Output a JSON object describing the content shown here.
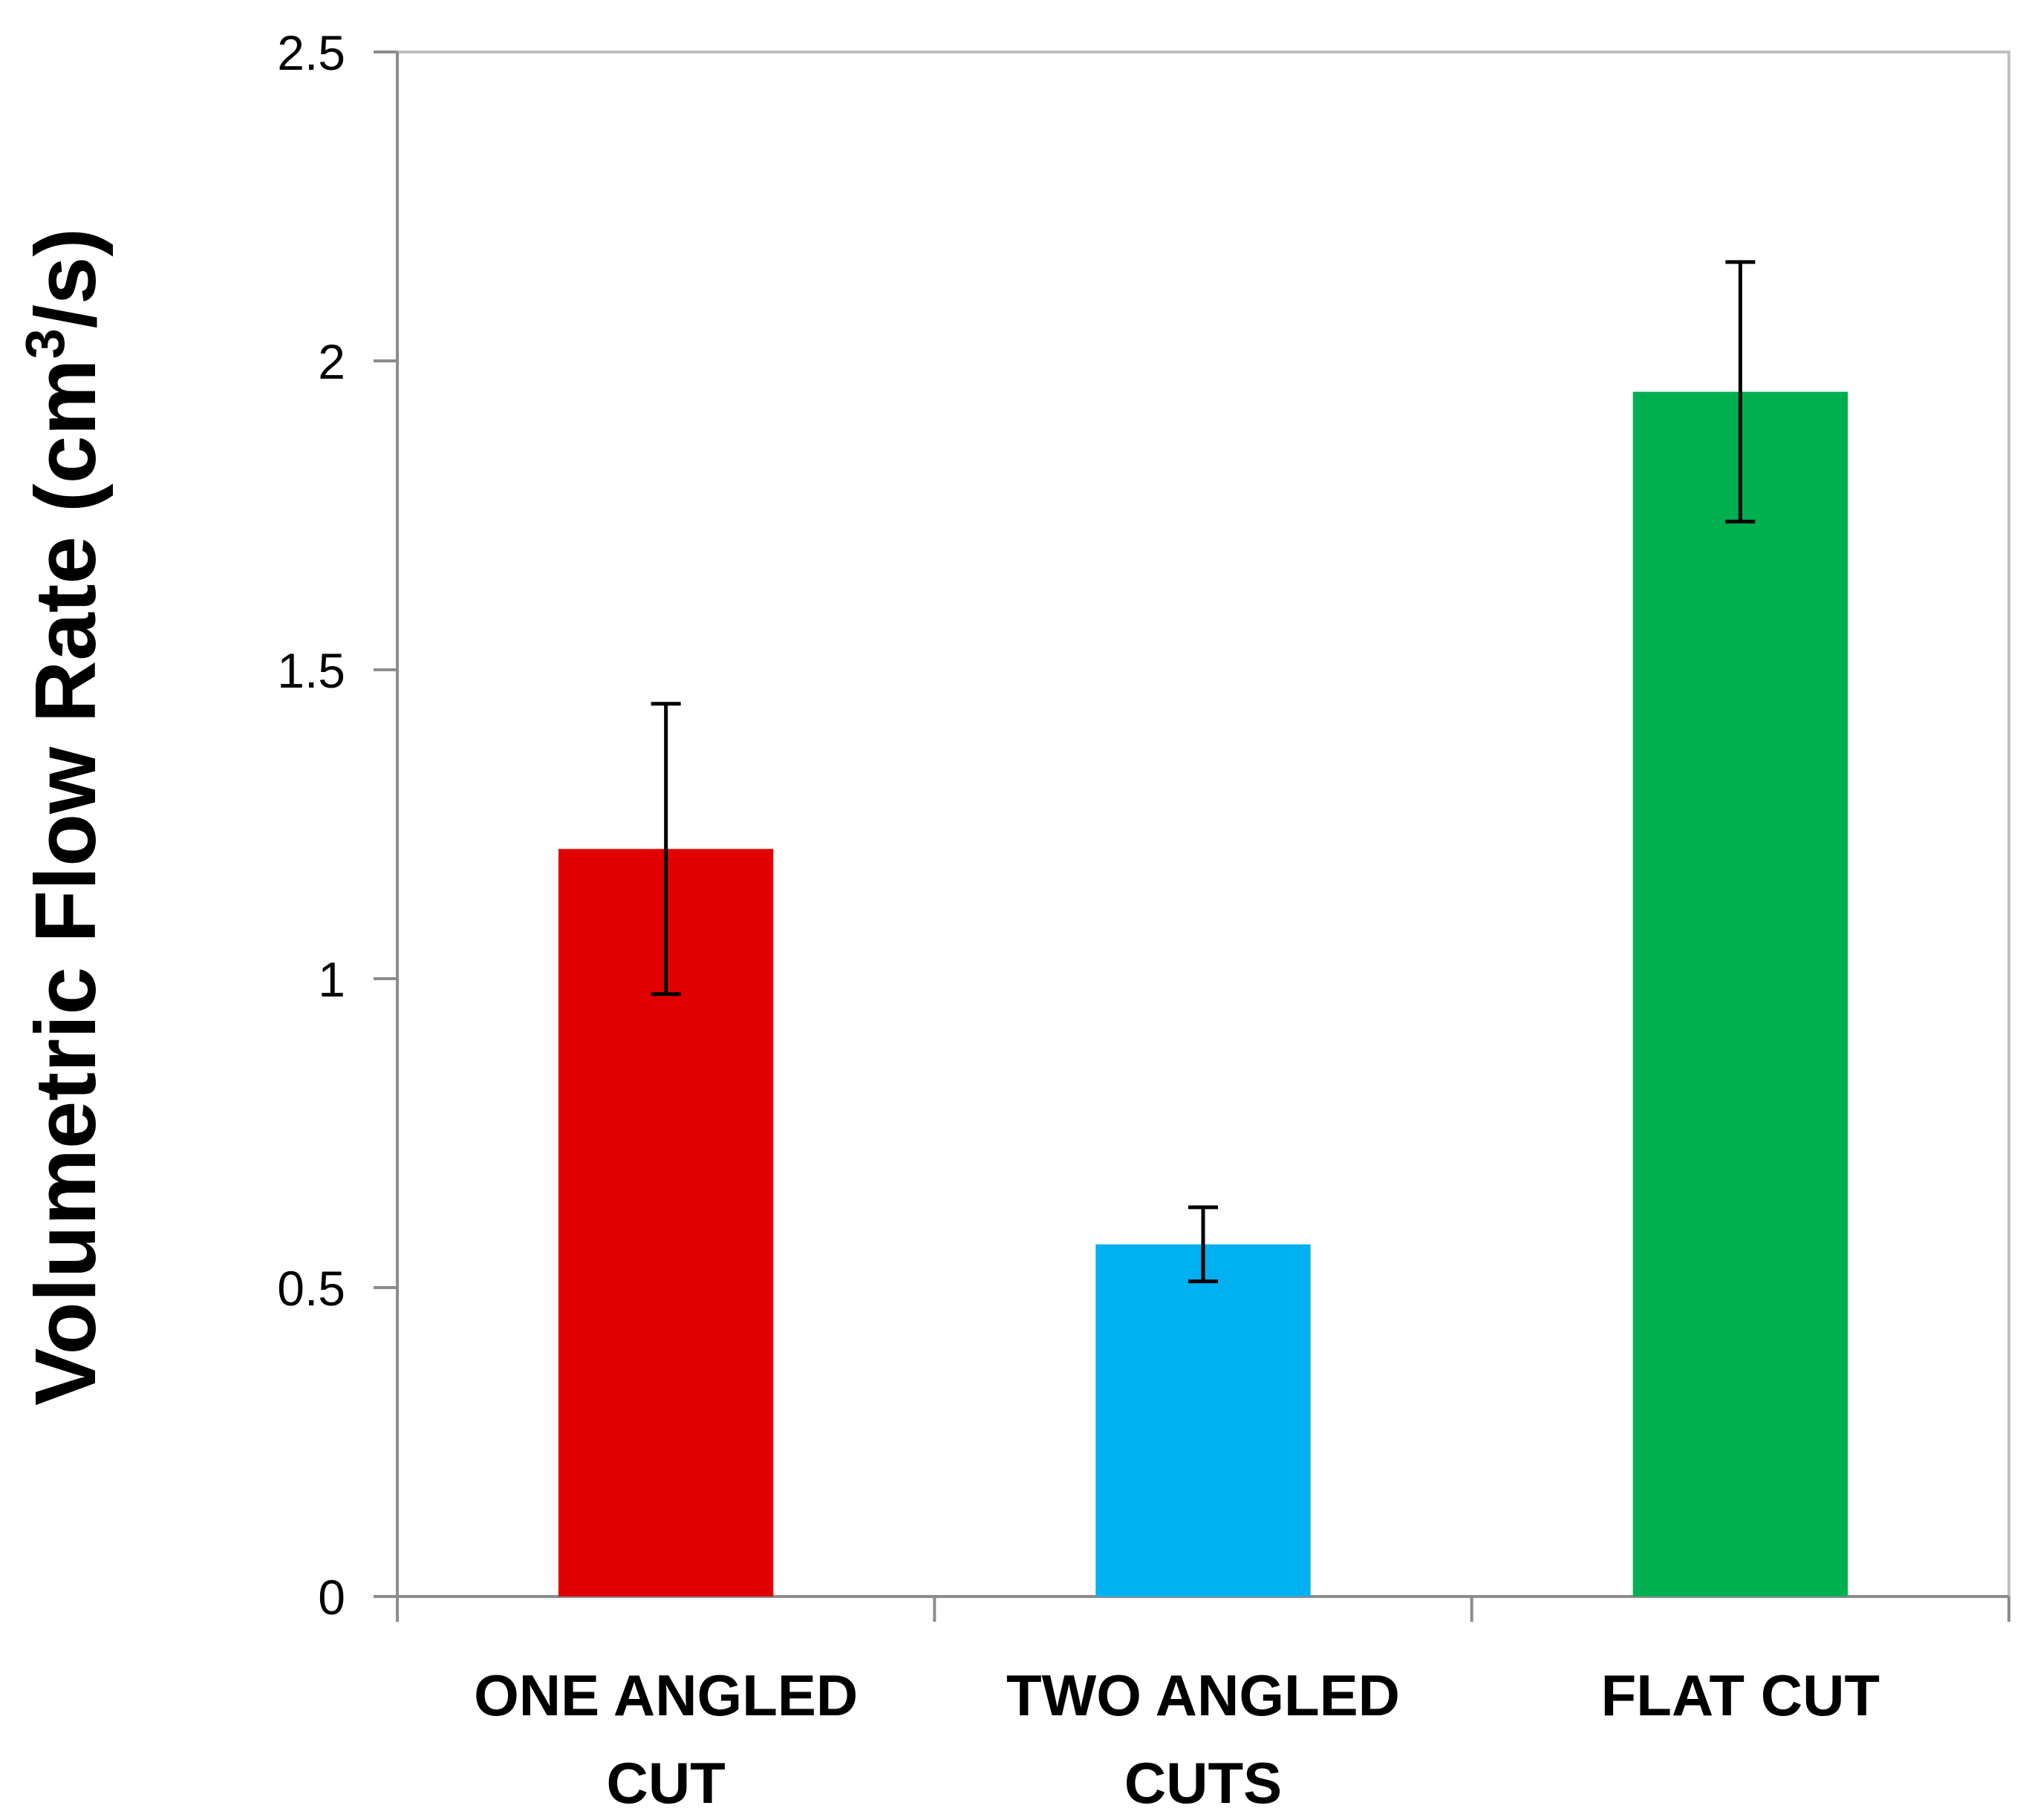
{
  "chart_data": {
    "type": "bar",
    "title": "",
    "xlabel": "",
    "ylabel": {
      "prefix": "Volumetric  Flow Rate (cm",
      "superscript": "3",
      "suffix": "/s)"
    },
    "categories": [
      [
        "ONE ANGLED",
        "CUT"
      ],
      [
        "TWO ANGLED",
        "CUTS"
      ],
      [
        "FLAT CUT"
      ]
    ],
    "values": [
      1.21,
      0.57,
      1.95
    ],
    "errors": [
      0.235,
      0.06,
      0.21
    ],
    "colors": [
      "#E00000",
      "#00B0F0",
      "#00B050"
    ],
    "ylim": [
      0,
      2.5
    ],
    "yticks": [
      0,
      0.5,
      1,
      1.5,
      2,
      2.5
    ],
    "ytick_labels": [
      "0",
      "0.5",
      "1",
      "1.5",
      "2",
      "2.5"
    ],
    "grid": false,
    "legend": "none"
  }
}
